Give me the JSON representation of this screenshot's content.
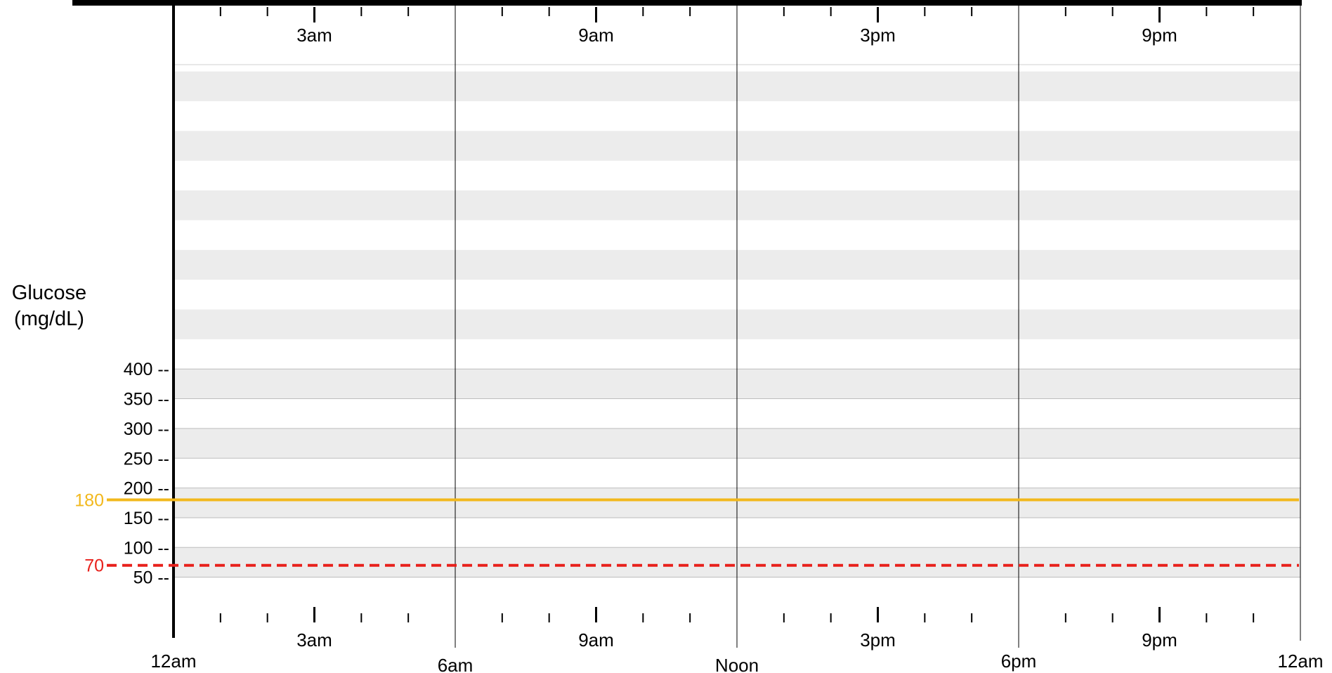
{
  "chart_data": {
    "type": "line",
    "title": "",
    "ylabel": [
      "Glucose",
      "(mg/dL)"
    ],
    "ylim": [
      0,
      450
    ],
    "y_ticks": [
      {
        "value": 50,
        "label": "50 --"
      },
      {
        "value": 100,
        "label": "100 --"
      },
      {
        "value": 150,
        "label": "150 --"
      },
      {
        "value": 200,
        "label": "200 --"
      },
      {
        "value": 250,
        "label": "250 --"
      },
      {
        "value": 300,
        "label": "300 --"
      },
      {
        "value": 350,
        "label": "350 --"
      },
      {
        "value": 400,
        "label": "400 --"
      }
    ],
    "x_range_hours": [
      0,
      24
    ],
    "x_major": [
      {
        "hour": 0,
        "label": "12am"
      },
      {
        "hour": 6,
        "label": "6am"
      },
      {
        "hour": 12,
        "label": "Noon"
      },
      {
        "hour": 18,
        "label": "6pm"
      },
      {
        "hour": 24,
        "label": "12am"
      }
    ],
    "x_mid": [
      {
        "hour": 3,
        "label": "3am"
      },
      {
        "hour": 9,
        "label": "9am"
      },
      {
        "hour": 15,
        "label": "3pm"
      },
      {
        "hour": 21,
        "label": "9pm"
      }
    ],
    "thresholds": [
      {
        "value": 180,
        "label": "180",
        "color": "#F2B81C",
        "style": "solid"
      },
      {
        "value": 70,
        "label": "70",
        "color": "#E8211C",
        "style": "dashed"
      }
    ],
    "band_colors": [
      "#ECECEC",
      "#FFFFFF"
    ],
    "grid": true,
    "series": []
  }
}
